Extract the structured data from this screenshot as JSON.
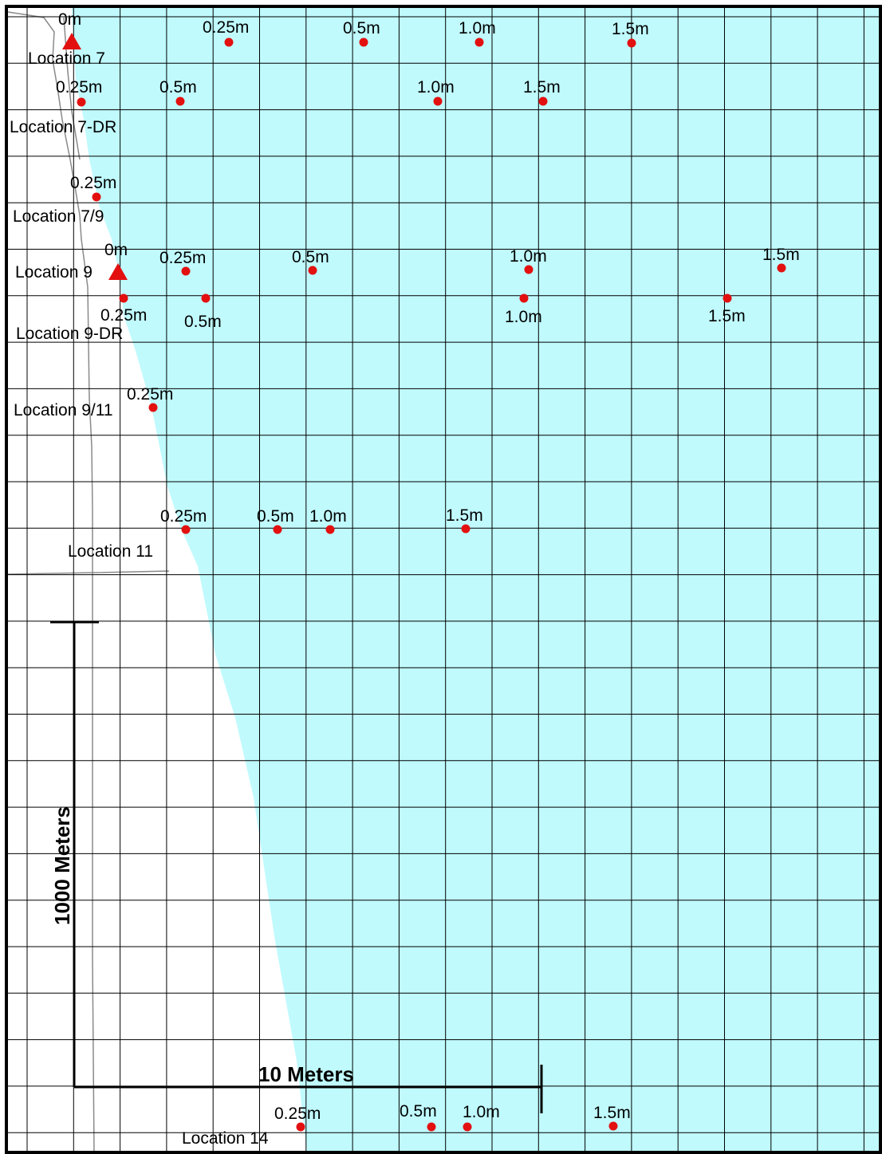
{
  "colors": {
    "water": "#c0fafd",
    "land": "#ffffff",
    "grid": "#000000",
    "road": "#8a8a8a",
    "marker": "#e31010"
  },
  "scale_bars": {
    "vertical_label": "1000 Meters",
    "horizontal_label": "10 Meters"
  },
  "location_labels": [
    "Location 7",
    "Location 7-DR",
    "Location 7/9",
    "Location 9",
    "Location 9-DR",
    "Location 9/11",
    "Location 11",
    "Location 14"
  ],
  "origin_markers": [
    {
      "location": "Location 7",
      "label": "0m",
      "icon": "triangle-marker-icon"
    },
    {
      "location": "Location 9",
      "label": "0m",
      "icon": "triangle-marker-icon"
    }
  ],
  "depth_points": [
    {
      "location": "Location 7",
      "label": "0.25m"
    },
    {
      "location": "Location 7",
      "label": "0.5m"
    },
    {
      "location": "Location 7",
      "label": "1.0m"
    },
    {
      "location": "Location 7",
      "label": "1.5m"
    },
    {
      "location": "Location 7-DR",
      "label": "0.25m"
    },
    {
      "location": "Location 7-DR",
      "label": "0.5m"
    },
    {
      "location": "Location 7-DR",
      "label": "1.0m"
    },
    {
      "location": "Location 7-DR",
      "label": "1.5m"
    },
    {
      "location": "Location 7/9",
      "label": "0.25m"
    },
    {
      "location": "Location 9",
      "label": "0.25m"
    },
    {
      "location": "Location 9",
      "label": "0.5m"
    },
    {
      "location": "Location 9",
      "label": "1.0m"
    },
    {
      "location": "Location 9",
      "label": "1.5m"
    },
    {
      "location": "Location 9-DR",
      "label": "0.25m"
    },
    {
      "location": "Location 9-DR",
      "label": "0.5m"
    },
    {
      "location": "Location 9-DR",
      "label": "1.0m"
    },
    {
      "location": "Location 9-DR",
      "label": "1.5m"
    },
    {
      "location": "Location 9/11",
      "label": "0.25m"
    },
    {
      "location": "Location 11",
      "label": "0.25m"
    },
    {
      "location": "Location 11",
      "label": "0.5m"
    },
    {
      "location": "Location 11",
      "label": "1.0m"
    },
    {
      "location": "Location 11",
      "label": "1.5m"
    },
    {
      "location": "Location 14",
      "label": "0.25m"
    },
    {
      "location": "Location 14",
      "label": "0.5m"
    },
    {
      "location": "Location 14",
      "label": "1.0m"
    },
    {
      "location": "Location 14",
      "label": "1.5m"
    }
  ]
}
